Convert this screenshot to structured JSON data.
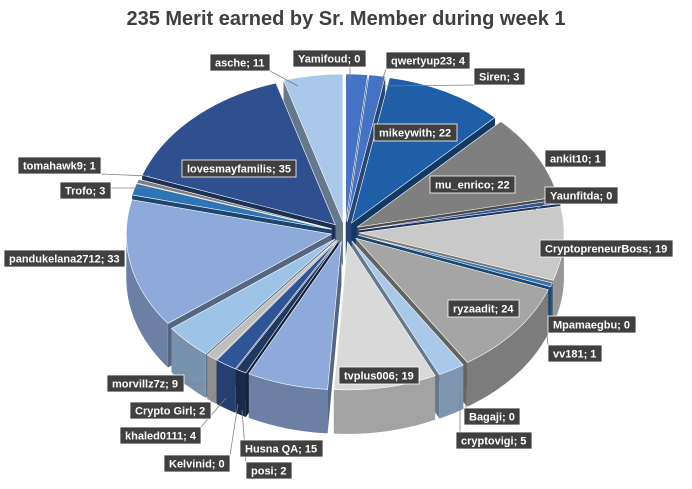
{
  "chart_data": {
    "type": "pie",
    "title": "235 Merit earned by Sr. Member during week 1",
    "style": "3d-exploded",
    "categories": [
      "Yamifoud",
      "qwertyup23",
      "Siren",
      "mikeywith",
      "mu_enrico",
      "ankit10",
      "Yaunfitda",
      "CryptopreneurBoss",
      "Mpamaegbu",
      "vv181",
      "ryzaadit",
      "Bagaji",
      "cryptovigi",
      "tvplus006",
      "Husna QA",
      "posi",
      "Kelvinid",
      "khaled0111",
      "Crypto Girl",
      "morvillz7z",
      "pandukelana2712",
      "Trofo",
      "tomahawk9",
      "lovesmayfamilis",
      "asche"
    ],
    "values": [
      0,
      4,
      3,
      22,
      22,
      1,
      0,
      19,
      0,
      1,
      24,
      0,
      5,
      19,
      15,
      2,
      0,
      4,
      2,
      9,
      33,
      3,
      1,
      35,
      11
    ],
    "labels": [
      "Yamifoud; 0",
      "qwertyup23; 4",
      "Siren; 3",
      "mikeywith; 22",
      "mu_enrico; 22",
      "ankit10; 1",
      "Yaunfitda; 0",
      "CryptopreneurBoss; 19",
      "Mpamaegbu; 0",
      "vv181; 1",
      "ryzaadit; 24",
      "Bagaji; 0",
      "cryptovigi; 5",
      "tvplus006; 19",
      "Husna QA; 15",
      "posi; 2",
      "Kelvinid; 0",
      "khaled0111; 4",
      "Crypto Girl; 2",
      "morvillz7z; 9",
      "pandukelana2712; 33",
      "Trofo; 3",
      "tomahawk9; 1",
      "lovesmayfamilis; 35",
      "asche; 11"
    ],
    "colors": [
      "#a5a5a5",
      "#4472c4",
      "#4472c4",
      "#1e5fa8",
      "#7f7f7f",
      "#2e5597",
      "#a5a5a5",
      "#c9c9c9",
      "#5b9bd5",
      "#2f75b5",
      "#a5a5a5",
      "#a9c8ea",
      "#a9c8ea",
      "#d9d9d9",
      "#8eaadb",
      "#203864",
      "#1f3864",
      "#2f5597",
      "#bfbfbf",
      "#9dc3e6",
      "#8eaadb",
      "#2e75b6",
      "#7f7f7f",
      "#2f4f8f",
      "#a9c8ea"
    ],
    "label_bg": "#404040",
    "label_fg": "#ffffff"
  }
}
